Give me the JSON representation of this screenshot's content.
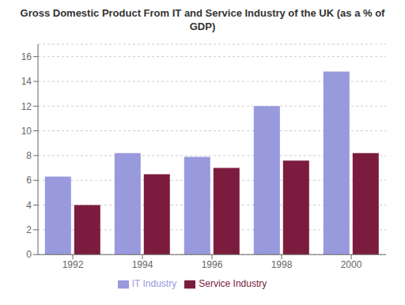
{
  "chart_data": {
    "type": "bar",
    "title": "Gross Domestic Product From IT and Service Industry of the UK (as a % of\nGDP)",
    "categories": [
      "1992",
      "1994",
      "1996",
      "1998",
      "2000"
    ],
    "series": [
      {
        "name": "IT Industry",
        "color": "#9999DD",
        "values": [
          6.3,
          8.2,
          7.9,
          12.0,
          14.8
        ]
      },
      {
        "name": "Service Industry",
        "color": "#7B1C3E",
        "values": [
          4.0,
          6.5,
          7.0,
          7.6,
          8.2
        ]
      }
    ],
    "ylim": [
      0,
      17
    ],
    "yticks": [
      0,
      2,
      4,
      6,
      8,
      10,
      12,
      14,
      16
    ],
    "grid": true,
    "legend": "bottom"
  }
}
